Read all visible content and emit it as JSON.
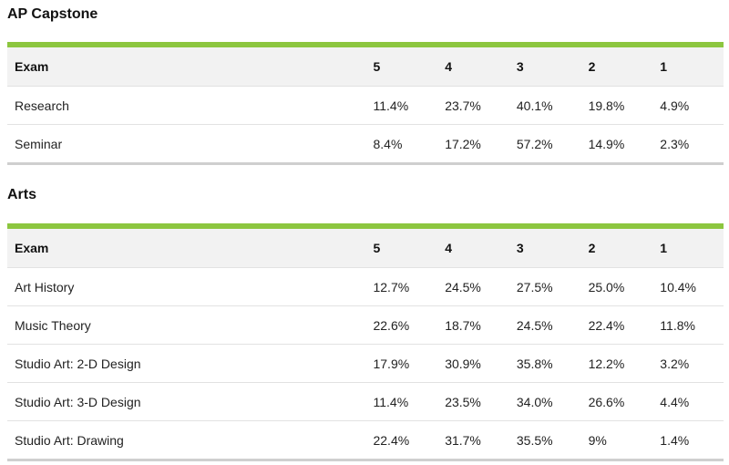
{
  "sections": [
    {
      "title": "AP Capstone",
      "headers": [
        "Exam",
        "5",
        "4",
        "3",
        "2",
        "1"
      ],
      "rows": [
        {
          "exam": "Research",
          "scores": [
            "11.4%",
            "23.7%",
            "40.1%",
            "19.8%",
            "4.9%"
          ]
        },
        {
          "exam": "Seminar",
          "scores": [
            "8.4%",
            "17.2%",
            "57.2%",
            "14.9%",
            "2.3%"
          ]
        }
      ]
    },
    {
      "title": "Arts",
      "headers": [
        "Exam",
        "5",
        "4",
        "3",
        "2",
        "1"
      ],
      "rows": [
        {
          "exam": "Art History",
          "scores": [
            "12.7%",
            "24.5%",
            "27.5%",
            "25.0%",
            "10.4%"
          ]
        },
        {
          "exam": "Music Theory",
          "scores": [
            "22.6%",
            "18.7%",
            "24.5%",
            "22.4%",
            "11.8%"
          ]
        },
        {
          "exam": "Studio Art: 2-D Design",
          "scores": [
            "17.9%",
            "30.9%",
            "35.8%",
            "12.2%",
            "3.2%"
          ]
        },
        {
          "exam": "Studio Art: 3-D Design",
          "scores": [
            "11.4%",
            "23.5%",
            "34.0%",
            "26.6%",
            "4.4%"
          ]
        },
        {
          "exam": "Studio Art: Drawing",
          "scores": [
            "22.4%",
            "31.7%",
            "35.5%",
            "9%",
            "1.4%"
          ]
        }
      ]
    }
  ],
  "colors": {
    "accent_bar": "#8cc63f",
    "header_bg": "#f2f2f2",
    "row_border": "#e2e2e2"
  }
}
